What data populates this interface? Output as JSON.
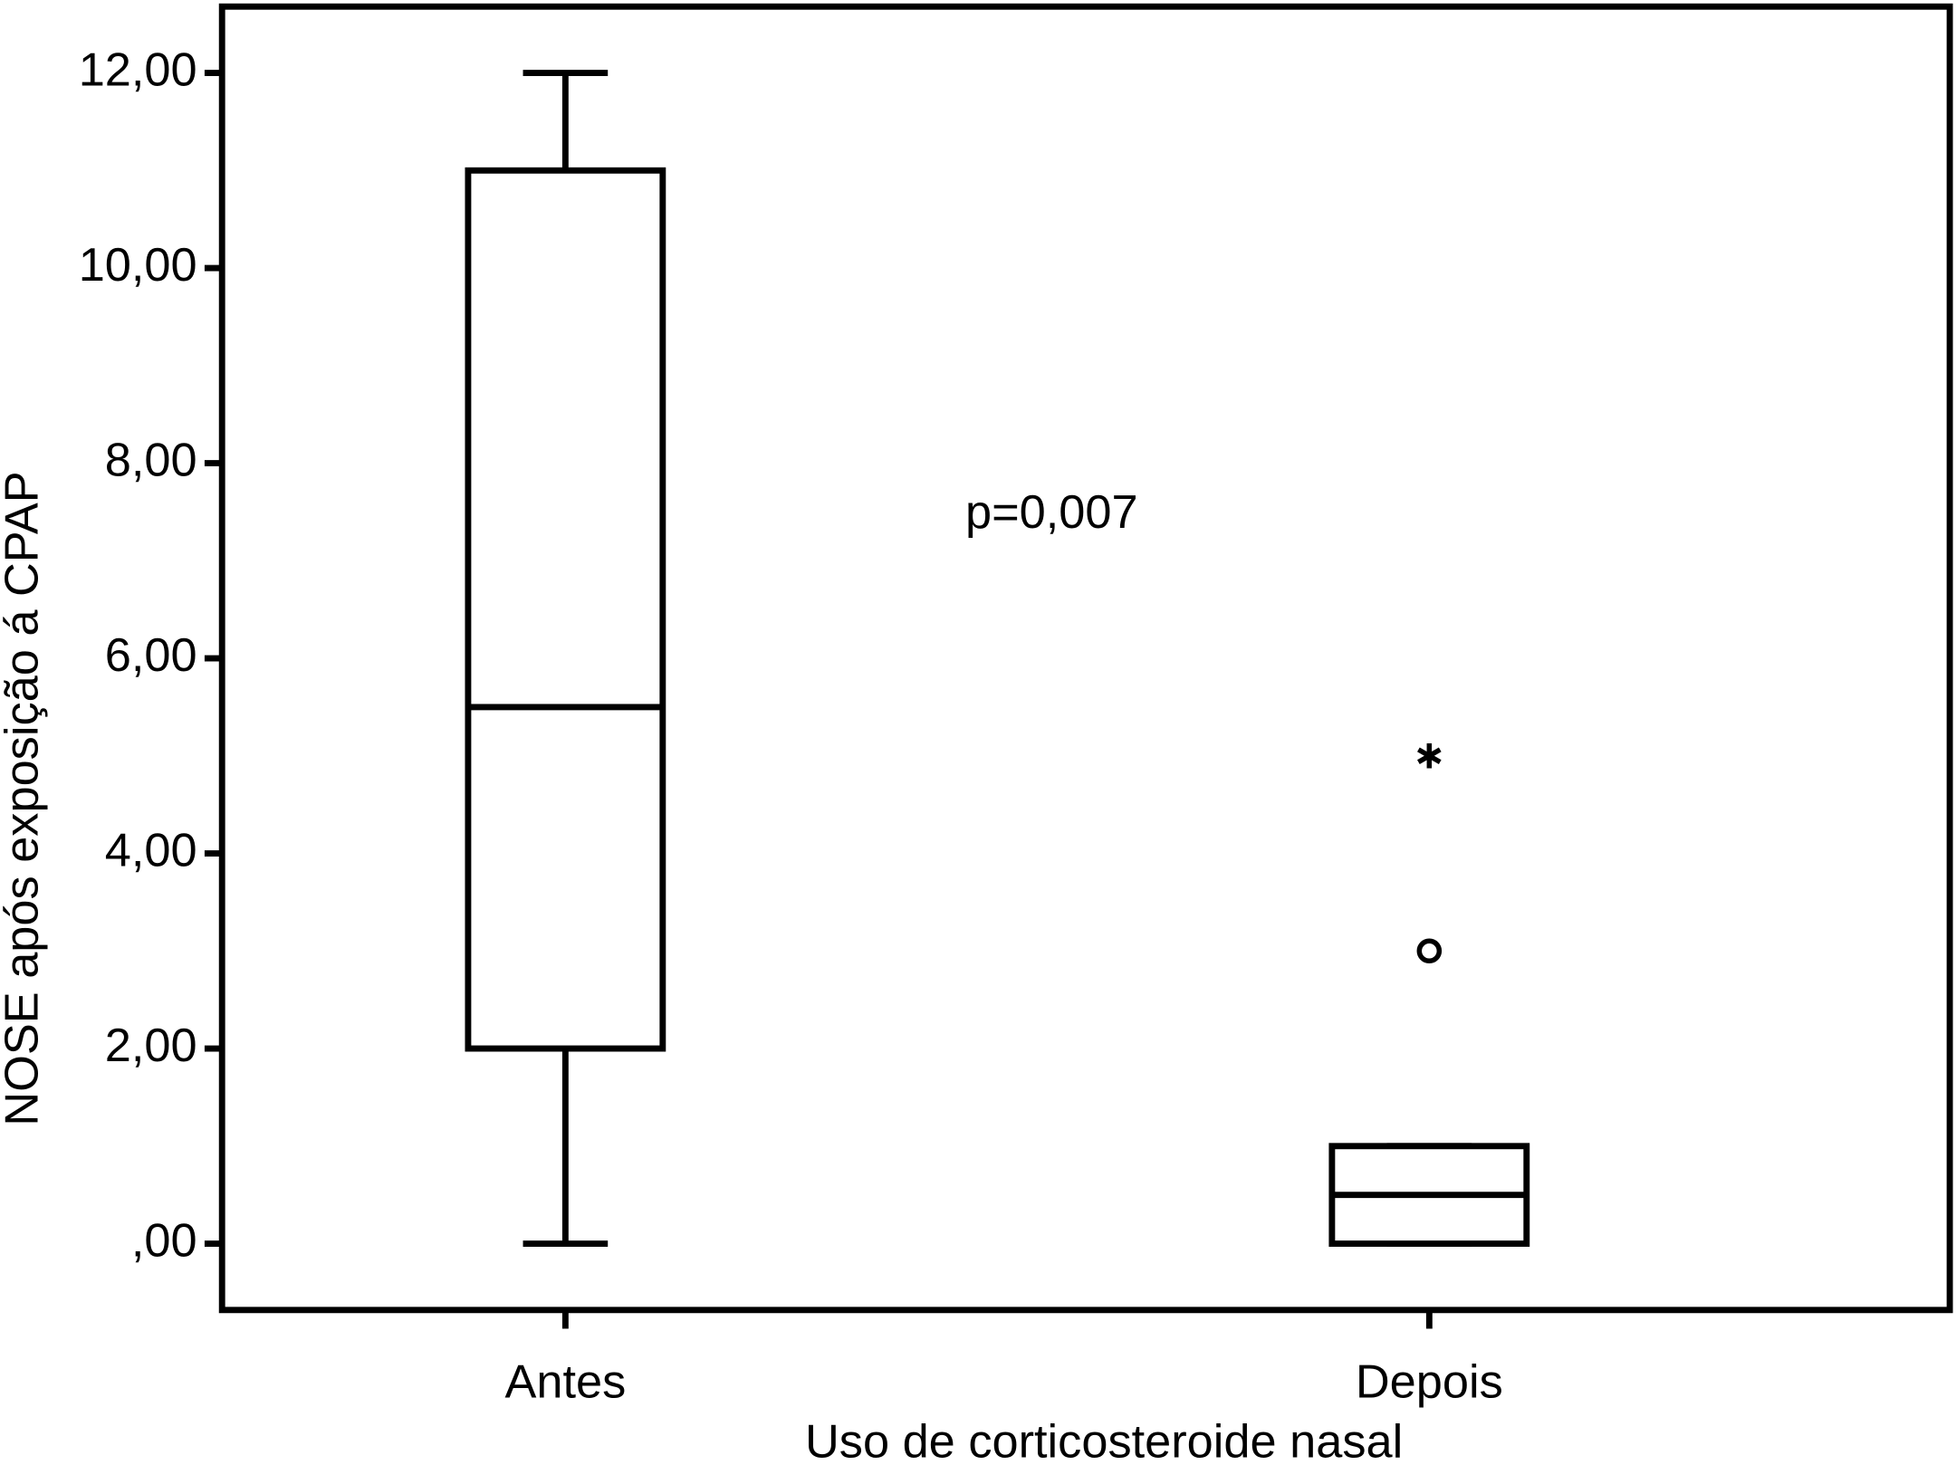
{
  "chart_data": {
    "type": "boxplot",
    "x_label": "Uso de corticosteroide nasal",
    "y_label": "NOSE após exposição á CPAP",
    "annotation": "p=0,007",
    "categories": [
      "Antes",
      "Depois"
    ],
    "boxes": [
      {
        "min": 0,
        "q1": 2,
        "median": 5.5,
        "q3": 11,
        "max": 12
      },
      {
        "min": 0,
        "q1": 0,
        "median": 0.5,
        "q3": 1,
        "max": 1
      }
    ],
    "outliers": [
      [],
      [
        3
      ]
    ],
    "extremes": [
      [],
      [
        5
      ]
    ],
    "color": "#000000",
    "ylim": [
      -0.68,
      12.68
    ],
    "yticks": [
      {
        "value": 0,
        "label": ",00"
      },
      {
        "value": 2,
        "label": "2,00"
      },
      {
        "value": 4,
        "label": "4,00"
      },
      {
        "value": 6,
        "label": "6,00"
      },
      {
        "value": 8,
        "label": "8,00"
      },
      {
        "value": 10,
        "label": "10,00"
      },
      {
        "value": 12,
        "label": "12,00"
      }
    ]
  }
}
